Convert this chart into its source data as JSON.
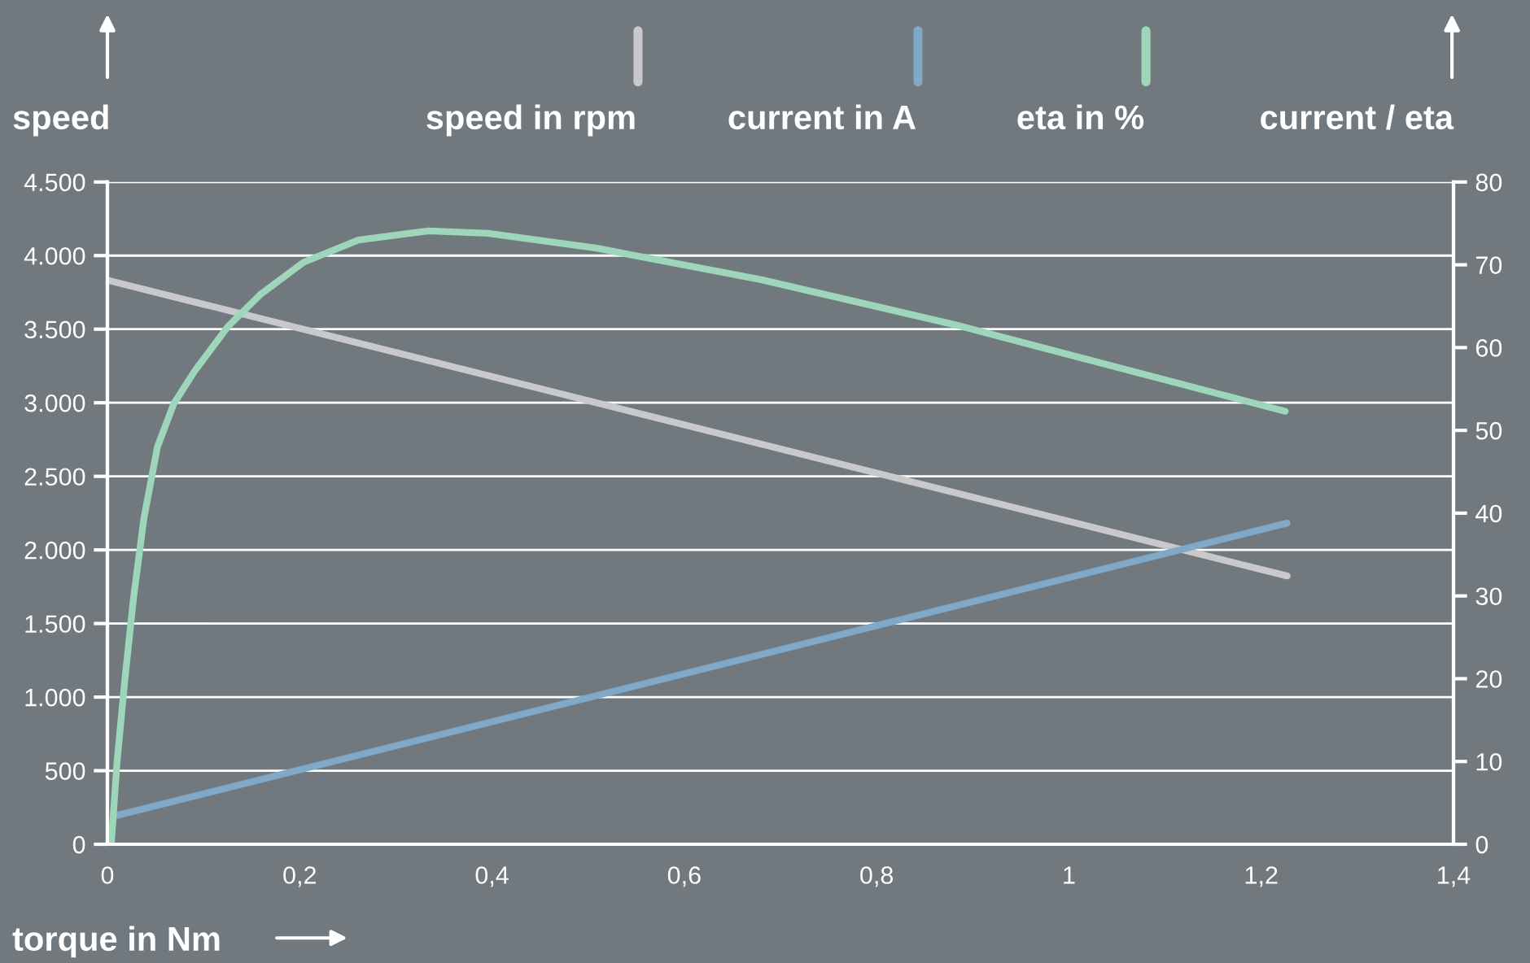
{
  "chart_data": {
    "type": "line",
    "xlabel": "torque in Nm",
    "ylabel": "speed",
    "y2label": "current / eta",
    "legend": "top",
    "grid": "y",
    "marker": "none",
    "line_style": "solid",
    "xlim": [
      0,
      1.4
    ],
    "xticks": [
      0,
      {
        "value": 0.2,
        "label": "0,2"
      },
      {
        "value": 0.4,
        "label": "0,4"
      },
      {
        "value": 0.6,
        "label": "0,6"
      },
      {
        "value": 0.8,
        "label": "0,8"
      },
      1,
      {
        "value": 1.2,
        "label": "1,2"
      },
      {
        "value": 1.4,
        "label": "1,4"
      }
    ],
    "ylim": [
      0,
      4500
    ],
    "yticks": [
      0,
      500,
      {
        "value": 1000,
        "label": "1.000"
      },
      {
        "value": 1500,
        "label": "1.500"
      },
      {
        "value": 2000,
        "label": "2.000"
      },
      {
        "value": 2500,
        "label": "2.500"
      },
      {
        "value": 3000,
        "label": "3.000"
      },
      {
        "value": 3500,
        "label": "3.500"
      },
      {
        "value": 4000,
        "label": "4.000"
      },
      {
        "value": 4500,
        "label": "4.500"
      }
    ],
    "y2lim": [
      0,
      80
    ],
    "y2ticks": [
      0,
      10,
      20,
      30,
      40,
      50,
      60,
      70,
      80
    ],
    "series": [
      {
        "name": "speed in rpm",
        "color": "#c9c9cc",
        "x": [
          0,
          1.227
        ],
        "values": [
          3833,
          1823
        ]
      },
      {
        "name": "current in A",
        "color": "#7fa9c6",
        "axis": "y2",
        "x": [
          0.007,
          1.227
        ],
        "values": [
          3.4,
          38.8
        ]
      },
      {
        "name": "eta in %",
        "color": "#9dd6b8",
        "axis": "y2",
        "x": [
          0.004,
          0.01,
          0.018,
          0.027,
          0.038,
          0.052,
          0.069,
          0.091,
          0.125,
          0.159,
          0.204,
          0.261,
          0.334,
          0.396,
          0.509,
          0.68,
          0.88,
          1.225
        ],
        "values": [
          0,
          9.9,
          19.7,
          29.6,
          39.4,
          48.0,
          53.2,
          57.2,
          62.5,
          66.4,
          70.3,
          73.0,
          74.1,
          73.8,
          72.0,
          68.2,
          62.8,
          52.3
        ]
      }
    ]
  }
}
